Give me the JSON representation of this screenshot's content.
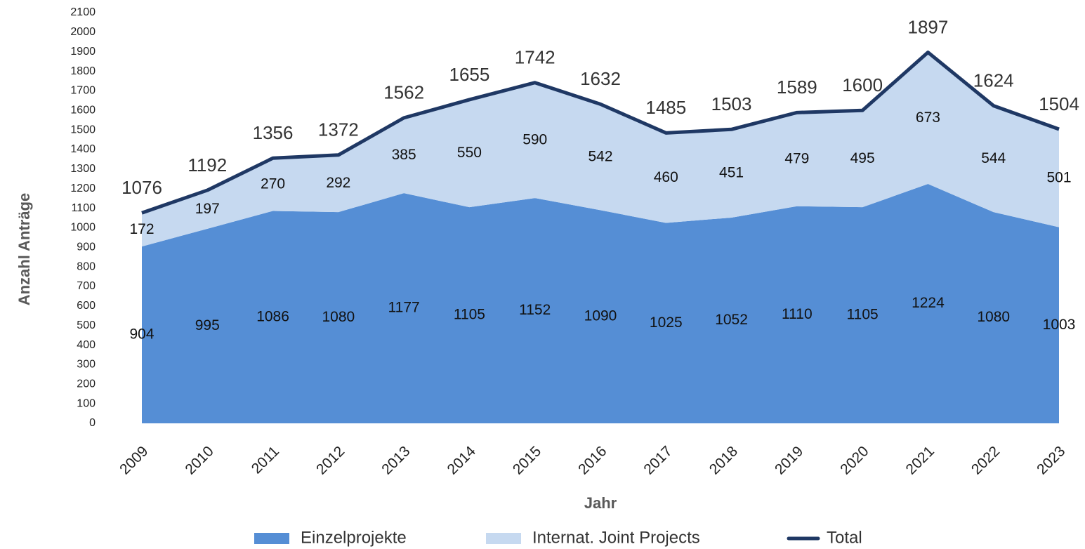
{
  "chart_data": {
    "type": "area",
    "stacked": true,
    "x_label": "Jahr",
    "y_label": "Anzahl Anträge",
    "categories": [
      "2009",
      "2010",
      "2011",
      "2012",
      "2013",
      "2014",
      "2015",
      "2016",
      "2017",
      "2018",
      "2019",
      "2020",
      "2021",
      "2022",
      "2023"
    ],
    "series": [
      {
        "name": "Einzelprojekte",
        "color": "#558ed5",
        "type": "area",
        "values": [
          904,
          995,
          1086,
          1080,
          1177,
          1105,
          1152,
          1090,
          1025,
          1052,
          1110,
          1105,
          1224,
          1080,
          1003
        ]
      },
      {
        "name": "Internat. Joint Projects",
        "color": "#c6d9f0",
        "type": "area",
        "values": [
          172,
          197,
          270,
          292,
          385,
          550,
          590,
          542,
          460,
          451,
          479,
          495,
          673,
          544,
          501
        ]
      },
      {
        "name": "Total",
        "color": "#1f3864",
        "type": "line",
        "values": [
          1076,
          1192,
          1356,
          1372,
          1562,
          1655,
          1742,
          1632,
          1485,
          1503,
          1589,
          1600,
          1897,
          1624,
          1504
        ]
      }
    ],
    "ylim": [
      0,
      2100
    ],
    "yticks": [
      0,
      100,
      200,
      300,
      400,
      500,
      600,
      700,
      800,
      900,
      1000,
      1100,
      1200,
      1300,
      1400,
      1500,
      1600,
      1700,
      1800,
      1900,
      2000,
      2100
    ],
    "grid": false,
    "legend": "bottom"
  }
}
